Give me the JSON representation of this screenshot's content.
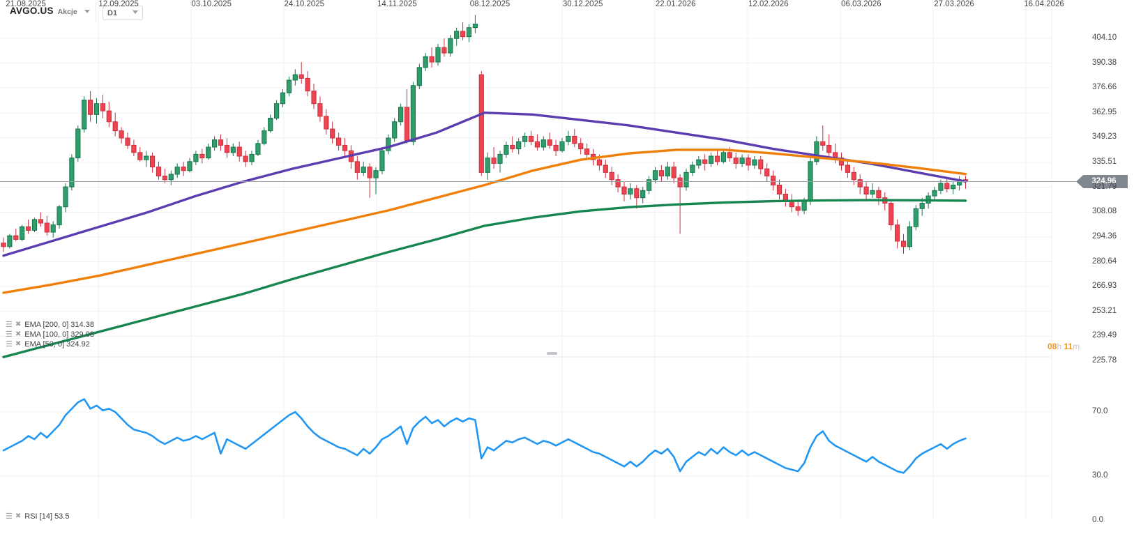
{
  "header": {
    "symbol": "AVGO.US",
    "market": "Akcje",
    "timeframe": "D1"
  },
  "legend": {
    "ema": [
      {
        "label": "EMA [200, 0] 314.38"
      },
      {
        "label": "EMA [100, 0] 329.08"
      },
      {
        "label": "EMA [50, 0] 324.92"
      }
    ],
    "rsi": "RSI [14] 53.5"
  },
  "countdown": {
    "hours": "08",
    "hours_unit": "h",
    "minutes": "11",
    "minutes_unit": "m"
  },
  "price_axis": {
    "ticks": [
      "404.10",
      "390.38",
      "376.66",
      "362.95",
      "349.23",
      "335.51",
      "321.79",
      "308.08",
      "294.36",
      "280.64",
      "266.93",
      "253.21",
      "239.49",
      "225.78"
    ],
    "current_price": "324.96",
    "current_price_value": 324.96
  },
  "rsi_axis": {
    "ticks": [
      "70.0",
      "30.0",
      "0.0"
    ],
    "tick_values": [
      70,
      30,
      0
    ]
  },
  "x_axis": {
    "dates": [
      "21.08.2025",
      "12.09.2025",
      "03.10.2025",
      "24.10.2025",
      "14.11.2025",
      "08.12.2025",
      "30.12.2025",
      "22.01.2026",
      "12.02.2026",
      "06.03.2026",
      "27.03.2026",
      "16.04.2026"
    ]
  },
  "chart_data": {
    "type": "candlestick",
    "title": "AVGO.US Akcje D1",
    "ylim": [
      225.78,
      404.1
    ],
    "grid": true,
    "colors": {
      "bull": "#2f9e6a",
      "bull_border": "#17744c",
      "bear": "#ee4451",
      "bear_border": "#c9303e",
      "ema50": "#5b3db0",
      "ema100": "#f07f09",
      "ema200": "#17854f",
      "rsi": "#2196f3",
      "price_line": "#9aa2a6",
      "badge": "#81878e",
      "grid_line": "#f0f0f4"
    },
    "candles": [
      [
        291,
        294,
        286,
        289
      ],
      [
        289,
        296,
        288,
        295
      ],
      [
        295,
        299,
        292,
        293
      ],
      [
        293,
        301,
        292,
        300
      ],
      [
        300,
        304,
        296,
        298
      ],
      [
        298,
        305,
        297,
        304
      ],
      [
        304,
        308,
        300,
        302
      ],
      [
        302,
        306,
        295,
        297
      ],
      [
        297,
        303,
        294,
        301
      ],
      [
        301,
        312,
        299,
        311
      ],
      [
        311,
        324,
        308,
        322
      ],
      [
        322,
        340,
        320,
        338
      ],
      [
        338,
        356,
        336,
        354
      ],
      [
        354,
        372,
        352,
        370
      ],
      [
        370,
        375,
        358,
        362
      ],
      [
        362,
        371,
        357,
        368
      ],
      [
        368,
        373,
        360,
        364
      ],
      [
        364,
        369,
        355,
        358
      ],
      [
        358,
        363,
        350,
        353
      ],
      [
        353,
        355,
        346,
        349
      ],
      [
        349,
        352,
        343,
        345
      ],
      [
        345,
        348,
        339,
        341
      ],
      [
        341,
        344,
        336,
        337
      ],
      [
        337,
        342,
        333,
        339
      ],
      [
        339,
        341,
        330,
        333
      ],
      [
        333,
        336,
        326,
        328
      ],
      [
        328,
        332,
        324,
        326
      ],
      [
        326,
        331,
        323,
        329
      ],
      [
        329,
        335,
        327,
        333
      ],
      [
        333,
        336,
        328,
        331
      ],
      [
        331,
        338,
        330,
        336
      ],
      [
        336,
        342,
        334,
        340
      ],
      [
        340,
        343,
        335,
        338
      ],
      [
        338,
        346,
        337,
        344
      ],
      [
        344,
        350,
        342,
        348
      ],
      [
        348,
        351,
        342,
        345
      ],
      [
        345,
        349,
        338,
        341
      ],
      [
        341,
        346,
        339,
        344
      ],
      [
        344,
        347,
        336,
        339
      ],
      [
        339,
        342,
        333,
        336
      ],
      [
        336,
        342,
        334,
        340
      ],
      [
        340,
        348,
        339,
        346
      ],
      [
        346,
        355,
        345,
        353
      ],
      [
        353,
        362,
        352,
        360
      ],
      [
        360,
        370,
        359,
        368
      ],
      [
        368,
        376,
        366,
        374
      ],
      [
        374,
        383,
        372,
        381
      ],
      [
        381,
        387,
        378,
        384
      ],
      [
        384,
        391,
        379,
        382
      ],
      [
        382,
        386,
        372,
        375
      ],
      [
        375,
        379,
        365,
        368
      ],
      [
        368,
        372,
        358,
        361
      ],
      [
        361,
        365,
        351,
        354
      ],
      [
        354,
        358,
        346,
        349
      ],
      [
        349,
        352,
        342,
        345
      ],
      [
        345,
        349,
        339,
        342
      ],
      [
        342,
        345,
        332,
        336
      ],
      [
        336,
        339,
        326,
        330
      ],
      [
        330,
        336,
        328,
        333
      ],
      [
        333,
        335,
        316,
        327
      ],
      [
        327,
        333,
        318,
        331
      ],
      [
        331,
        344,
        329,
        342
      ],
      [
        342,
        351,
        340,
        349
      ],
      [
        349,
        360,
        347,
        358
      ],
      [
        358,
        368,
        356,
        366
      ],
      [
        366,
        376,
        346,
        347
      ],
      [
        347,
        380,
        345,
        378
      ],
      [
        378,
        390,
        376,
        388
      ],
      [
        388,
        396,
        386,
        394
      ],
      [
        394,
        399,
        388,
        391
      ],
      [
        391,
        401,
        389,
        399
      ],
      [
        399,
        404,
        394,
        396
      ],
      [
        396,
        406,
        394,
        404
      ],
      [
        404,
        410,
        400,
        408
      ],
      [
        408,
        413,
        403,
        405
      ],
      [
        405,
        412,
        402,
        410
      ],
      [
        410,
        417,
        407,
        412
      ],
      [
        384,
        386,
        328,
        330
      ],
      [
        330,
        341,
        326,
        338
      ],
      [
        338,
        344,
        332,
        335
      ],
      [
        335,
        342,
        330,
        340
      ],
      [
        340,
        347,
        338,
        345
      ],
      [
        345,
        350,
        341,
        343
      ],
      [
        343,
        349,
        340,
        347
      ],
      [
        347,
        352,
        344,
        350
      ],
      [
        350,
        353,
        345,
        347
      ],
      [
        347,
        351,
        342,
        344
      ],
      [
        344,
        350,
        342,
        348
      ],
      [
        348,
        352,
        343,
        345
      ],
      [
        345,
        348,
        339,
        342
      ],
      [
        342,
        349,
        341,
        347
      ],
      [
        347,
        353,
        345,
        350
      ],
      [
        350,
        354,
        344,
        346
      ],
      [
        346,
        349,
        340,
        343
      ],
      [
        343,
        346,
        337,
        340
      ],
      [
        340,
        343,
        334,
        337
      ],
      [
        337,
        340,
        331,
        334
      ],
      [
        334,
        337,
        327,
        330
      ],
      [
        330,
        333,
        323,
        326
      ],
      [
        326,
        329,
        319,
        322
      ],
      [
        322,
        325,
        314,
        318
      ],
      [
        318,
        324,
        315,
        321
      ],
      [
        321,
        323,
        310,
        316
      ],
      [
        316,
        322,
        313,
        320
      ],
      [
        320,
        328,
        318,
        326
      ],
      [
        326,
        333,
        324,
        331
      ],
      [
        331,
        334,
        325,
        328
      ],
      [
        328,
        336,
        326,
        333
      ],
      [
        333,
        336,
        324,
        327
      ],
      [
        327,
        329,
        296,
        322
      ],
      [
        322,
        332,
        320,
        330
      ],
      [
        330,
        336,
        328,
        334
      ],
      [
        334,
        339,
        332,
        337
      ],
      [
        337,
        340,
        331,
        335
      ],
      [
        335,
        341,
        333,
        339
      ],
      [
        339,
        342,
        334,
        336
      ],
      [
        336,
        343,
        335,
        341
      ],
      [
        341,
        344,
        336,
        338
      ],
      [
        338,
        341,
        332,
        335
      ],
      [
        335,
        340,
        333,
        338
      ],
      [
        338,
        340,
        331,
        334
      ],
      [
        334,
        339,
        332,
        337
      ],
      [
        337,
        339,
        329,
        332
      ],
      [
        332,
        335,
        325,
        328
      ],
      [
        328,
        331,
        320,
        323
      ],
      [
        323,
        326,
        315,
        318
      ],
      [
        318,
        321,
        311,
        314
      ],
      [
        314,
        318,
        308,
        311
      ],
      [
        311,
        315,
        306,
        309
      ],
      [
        309,
        316,
        307,
        314
      ],
      [
        314,
        338,
        312,
        336
      ],
      [
        336,
        350,
        334,
        347
      ],
      [
        347,
        356,
        342,
        345
      ],
      [
        345,
        351,
        338,
        341
      ],
      [
        341,
        346,
        335,
        338
      ],
      [
        338,
        341,
        331,
        334
      ],
      [
        334,
        337,
        327,
        330
      ],
      [
        330,
        333,
        323,
        326
      ],
      [
        326,
        329,
        318,
        322
      ],
      [
        322,
        325,
        314,
        318
      ],
      [
        318,
        324,
        316,
        320
      ],
      [
        320,
        322,
        312,
        316
      ],
      [
        316,
        319,
        309,
        313
      ],
      [
        313,
        315,
        298,
        301
      ],
      [
        301,
        304,
        288,
        292
      ],
      [
        292,
        296,
        285,
        289
      ],
      [
        289,
        303,
        287,
        300
      ],
      [
        300,
        312,
        298,
        310
      ],
      [
        310,
        316,
        306,
        313
      ],
      [
        313,
        319,
        310,
        317
      ],
      [
        317,
        322,
        314,
        320
      ],
      [
        320,
        326,
        318,
        324
      ],
      [
        324,
        327,
        319,
        321
      ],
      [
        321,
        325,
        318,
        323
      ],
      [
        323,
        328,
        320,
        326
      ],
      [
        326,
        328,
        321,
        324.96
      ]
    ],
    "overlays": [
      {
        "name": "EMA 50",
        "color": "#5b3db0",
        "values": [
          284,
          292,
          300,
          308,
          317,
          325,
          332,
          338,
          344,
          352,
          363,
          362,
          359,
          356,
          352,
          348,
          343,
          339,
          335,
          330,
          325
        ]
      },
      {
        "name": "EMA 100",
        "color": "#f07f09",
        "values": [
          263.5,
          268,
          273,
          279,
          285,
          291,
          297,
          303,
          309,
          316,
          323,
          331,
          337,
          340.5,
          342.5,
          342.5,
          340.5,
          338,
          335.5,
          332.5,
          329.1
        ]
      },
      {
        "name": "EMA 200",
        "color": "#17854f",
        "values": [
          228,
          235,
          242,
          249,
          256,
          263,
          271,
          278.5,
          286,
          293,
          300.5,
          305,
          308.5,
          310.8,
          312.3,
          313.4,
          314.1,
          314.5,
          314.7,
          314.6,
          314.4
        ]
      }
    ],
    "rsi": {
      "period": 14,
      "last": 53.5,
      "range": [
        0,
        100
      ],
      "overbought": 70,
      "oversold": 30,
      "values": [
        46,
        48,
        50,
        52,
        55,
        53,
        57,
        54,
        58,
        62,
        68,
        72,
        76,
        78,
        72,
        74,
        71,
        72,
        70,
        66,
        62,
        59,
        58,
        57,
        55,
        52,
        50,
        52,
        54,
        52,
        53,
        55,
        53,
        55,
        57,
        44,
        53,
        51,
        49,
        47,
        50,
        53,
        56,
        59,
        62,
        65,
        68,
        70,
        66,
        61,
        57,
        54,
        52,
        50,
        48,
        47,
        45,
        43,
        47,
        44,
        48,
        53,
        55,
        58,
        61,
        50,
        60,
        64,
        67,
        63,
        65,
        61,
        64,
        66,
        64,
        66,
        65,
        41,
        48,
        46,
        49,
        52,
        51,
        53,
        54,
        52,
        50,
        52,
        51,
        49,
        51,
        53,
        51,
        49,
        47,
        45,
        44,
        42,
        40,
        38,
        36,
        39,
        36,
        39,
        43,
        46,
        44,
        47,
        42,
        33,
        39,
        42,
        45,
        43,
        47,
        44,
        48,
        45,
        43,
        46,
        43,
        45,
        43,
        41,
        39,
        37,
        35,
        34,
        33,
        38,
        48,
        55,
        58,
        52,
        49,
        47,
        45,
        43,
        41,
        39,
        42,
        39,
        37,
        35,
        33,
        32,
        36,
        41,
        44,
        46,
        48,
        50,
        47,
        50,
        52,
        53.5
      ]
    }
  }
}
